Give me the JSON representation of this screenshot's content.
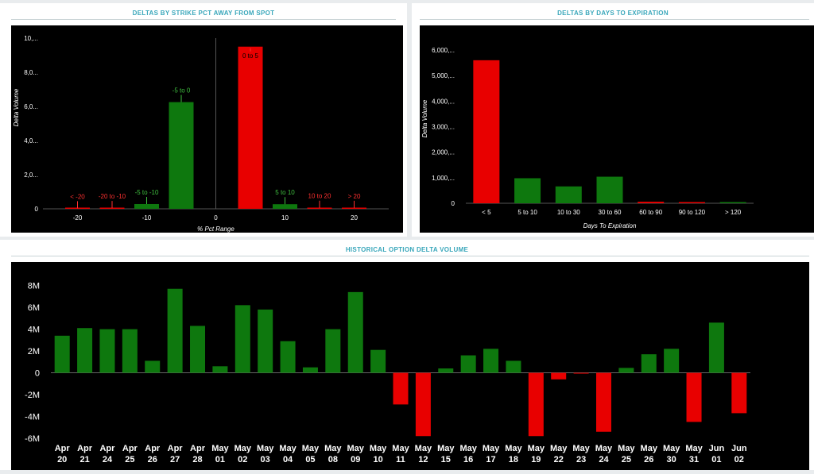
{
  "panels": {
    "strike": {
      "title": "DELTAS BY STRIKE PCT AWAY FROM SPOT"
    },
    "expiry": {
      "title": "DELTAS BY DAYS TO EXPIRATION"
    },
    "history": {
      "title": "HISTORICAL OPTION DELTA VOLUME"
    }
  },
  "colors": {
    "up": "#0e780e",
    "down": "#e80000",
    "up_label": "#3fbf3f",
    "down_label": "#ff3030",
    "axis_text": "#ffffff",
    "title": "#3aa7bb"
  },
  "chart_data": [
    {
      "id": "strike",
      "type": "bar",
      "title": "DELTAS BY STRIKE PCT AWAY FROM SPOT",
      "xlabel": "% Pct Range",
      "ylabel": "Delta Volume",
      "ytick_labels": [
        "0",
        "2,0...",
        "4,0...",
        "6,0...",
        "8,0...",
        "10,..."
      ],
      "ytick_values": [
        0,
        2000000,
        4000000,
        6000000,
        8000000,
        10000000
      ],
      "ylim": [
        0,
        10000000
      ],
      "xlim": [
        -25,
        25
      ],
      "xtick_values": [
        -20,
        -10,
        0,
        10,
        20
      ],
      "xtick_labels": [
        "-20",
        "-10",
        "0",
        "10",
        "20"
      ],
      "bars": [
        {
          "label": "< -20",
          "center": -20,
          "value": 30000,
          "color": "red"
        },
        {
          "label": "-20 to -10",
          "center": -15,
          "value": 40000,
          "color": "red"
        },
        {
          "label": "-5 to -10",
          "center": -10,
          "value": 280000,
          "color": "green"
        },
        {
          "label": "-5 to 0",
          "center": -5,
          "value": 6250000,
          "color": "green"
        },
        {
          "label": "0 to 5",
          "center": 5,
          "value": 9500000,
          "color": "red"
        },
        {
          "label": "5 to 10",
          "center": 10,
          "value": 270000,
          "color": "green"
        },
        {
          "label": "10 to 20",
          "center": 15,
          "value": 60000,
          "color": "red"
        },
        {
          "label": "> 20",
          "center": 20,
          "value": 50000,
          "color": "red"
        }
      ]
    },
    {
      "id": "expiry",
      "type": "bar",
      "title": "DELTAS BY DAYS TO EXPIRATION",
      "xlabel": "Days To Expiration",
      "ylabel": "Delta Volume",
      "ytick_labels": [
        "0",
        "1,000,...",
        "2,000,...",
        "3,000,...",
        "4,000,...",
        "5,000,...",
        "6,000,..."
      ],
      "ytick_values": [
        0,
        1000000,
        2000000,
        3000000,
        4000000,
        5000000,
        6000000
      ],
      "ylim": [
        0,
        6000000
      ],
      "categories": [
        "< 5",
        "5 to 10",
        "10 to 30",
        "30 to 60",
        "60 to 90",
        "90 to 120",
        "> 120"
      ],
      "values": [
        5600000,
        980000,
        660000,
        1040000,
        60000,
        30000,
        40000
      ],
      "bar_colors": [
        "red",
        "green",
        "green",
        "green",
        "red",
        "red",
        "green"
      ]
    },
    {
      "id": "history",
      "type": "bar",
      "title": "HISTORICAL OPTION DELTA VOLUME",
      "ytick_labels": [
        "-6M",
        "-4M",
        "-2M",
        "0",
        "2M",
        "4M",
        "6M",
        "8M"
      ],
      "ytick_values": [
        -6,
        -4,
        -2,
        0,
        2,
        4,
        6,
        8
      ],
      "ylim": [
        -6,
        8.7
      ],
      "unit": "M",
      "categories": [
        [
          "Apr",
          "20"
        ],
        [
          "Apr",
          "21"
        ],
        [
          "Apr",
          "24"
        ],
        [
          "Apr",
          "25"
        ],
        [
          "Apr",
          "26"
        ],
        [
          "Apr",
          "27"
        ],
        [
          "Apr",
          "28"
        ],
        [
          "May",
          "01"
        ],
        [
          "May",
          "02"
        ],
        [
          "May",
          "03"
        ],
        [
          "May",
          "04"
        ],
        [
          "May",
          "05"
        ],
        [
          "May",
          "08"
        ],
        [
          "May",
          "09"
        ],
        [
          "May",
          "10"
        ],
        [
          "May",
          "11"
        ],
        [
          "May",
          "12"
        ],
        [
          "May",
          "15"
        ],
        [
          "May",
          "16"
        ],
        [
          "May",
          "17"
        ],
        [
          "May",
          "18"
        ],
        [
          "May",
          "19"
        ],
        [
          "May",
          "22"
        ],
        [
          "May",
          "23"
        ],
        [
          "May",
          "24"
        ],
        [
          "May",
          "25"
        ],
        [
          "May",
          "26"
        ],
        [
          "May",
          "30"
        ],
        [
          "May",
          "31"
        ],
        [
          "Jun",
          "01"
        ],
        [
          "Jun",
          "02"
        ]
      ],
      "values": [
        3.4,
        4.1,
        4.0,
        4.0,
        1.1,
        7.7,
        4.3,
        0.6,
        6.2,
        5.8,
        2.9,
        0.5,
        4.0,
        7.4,
        2.1,
        -2.9,
        -5.8,
        0.4,
        1.6,
        2.2,
        1.1,
        -5.8,
        -0.6,
        -0.05,
        -5.4,
        0.45,
        1.7,
        2.2,
        -4.5,
        4.6,
        -3.7
      ]
    }
  ]
}
